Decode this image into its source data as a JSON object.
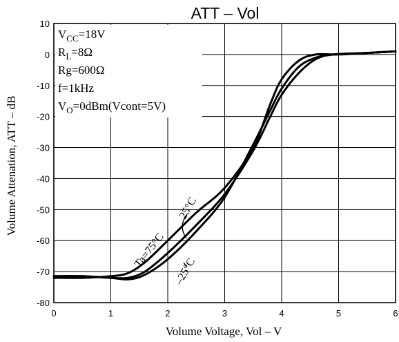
{
  "chart_data": {
    "type": "line",
    "title": "ATT  –  Vol",
    "xlabel": "Volume Voltage,  Vol  –  V",
    "ylabel": "Volume Attenation,  ATT  –  dB",
    "xlim": [
      0,
      6
    ],
    "ylim": [
      -80,
      10
    ],
    "x_ticks": [
      "0",
      "1",
      "2",
      "3",
      "4",
      "5",
      "6"
    ],
    "y_ticks": [
      "10",
      "0",
      "-10",
      "-20",
      "-30",
      "-40",
      "-50",
      "-60",
      "-70",
      "-80"
    ],
    "grid": true,
    "conditions": [
      {
        "base": "V",
        "sub": "CC",
        "rest": "=18V"
      },
      {
        "base": "R",
        "sub": "L",
        "rest": "=8Ω"
      },
      {
        "base": "Rg=600Ω",
        "sub": "",
        "rest": ""
      },
      {
        "base": "f=1kHz",
        "sub": "",
        "rest": ""
      },
      {
        "base": "V",
        "sub": "O",
        "rest": "=0dBm(Vcont=5V)"
      }
    ],
    "series": [
      {
        "name": "Ta=75°C",
        "x": [
          0,
          0.5,
          1.0,
          1.3,
          1.6,
          2.0,
          2.5,
          3.0,
          3.5,
          3.8,
          4.0,
          4.3,
          4.6,
          5.0,
          5.5,
          6.0
        ],
        "y": [
          -72,
          -72,
          -71.5,
          -70.5,
          -67,
          -60,
          -51,
          -43,
          -30,
          -16,
          -8,
          -2,
          0,
          0,
          0.5,
          1
        ]
      },
      {
        "name": "25°C",
        "x": [
          0,
          0.5,
          1.0,
          1.3,
          1.6,
          2.0,
          2.5,
          3.0,
          3.5,
          3.8,
          4.0,
          4.3,
          4.6,
          4.9,
          5.5,
          6.0
        ],
        "y": [
          -71.5,
          -71.5,
          -72,
          -72.5,
          -71,
          -66,
          -57,
          -46,
          -29,
          -18,
          -11,
          -4,
          -1,
          0,
          0.5,
          1
        ]
      },
      {
        "name": "-25°C",
        "x": [
          0,
          0.5,
          1.0,
          1.3,
          1.6,
          2.0,
          2.5,
          3.0,
          3.5,
          3.8,
          4.0,
          4.3,
          4.6,
          4.9,
          5.5,
          6.0
        ],
        "y": [
          -71.5,
          -71.5,
          -72,
          -72,
          -70,
          -64,
          -55,
          -45,
          -31,
          -20,
          -13,
          -6,
          -1.5,
          0,
          0.5,
          1
        ]
      }
    ],
    "annotations": [
      "Ta=75°C",
      "25°C",
      "–25°C"
    ]
  }
}
